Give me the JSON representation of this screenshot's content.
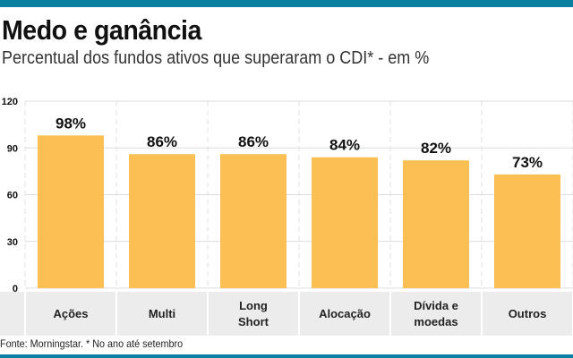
{
  "title": "Medo e ganância",
  "subtitle": "Percentual dos fundos ativos que superaram o CDI* - em %",
  "source": "Fonte: Morningstar. * No ano até setembro",
  "colors": {
    "bar": "#fbbf54",
    "accent": "#0a7f9f",
    "band": "#ececec"
  },
  "chart_data": {
    "type": "bar",
    "categories": [
      "Ações",
      "Multi",
      "Long Short",
      "Alocação",
      "Dívida e moedas",
      "Outros"
    ],
    "category_lines": [
      [
        "Ações"
      ],
      [
        "Multi"
      ],
      [
        "Long",
        "Short"
      ],
      [
        "Alocação"
      ],
      [
        "Dívida e",
        "moedas"
      ],
      [
        "Outros"
      ]
    ],
    "values": [
      98,
      86,
      86,
      84,
      82,
      73
    ],
    "data_labels": [
      "98%",
      "86%",
      "86%",
      "84%",
      "82%",
      "73%"
    ],
    "ylim": [
      0,
      120
    ],
    "yticks": [
      0,
      30,
      60,
      90,
      120
    ],
    "grid": true
  }
}
